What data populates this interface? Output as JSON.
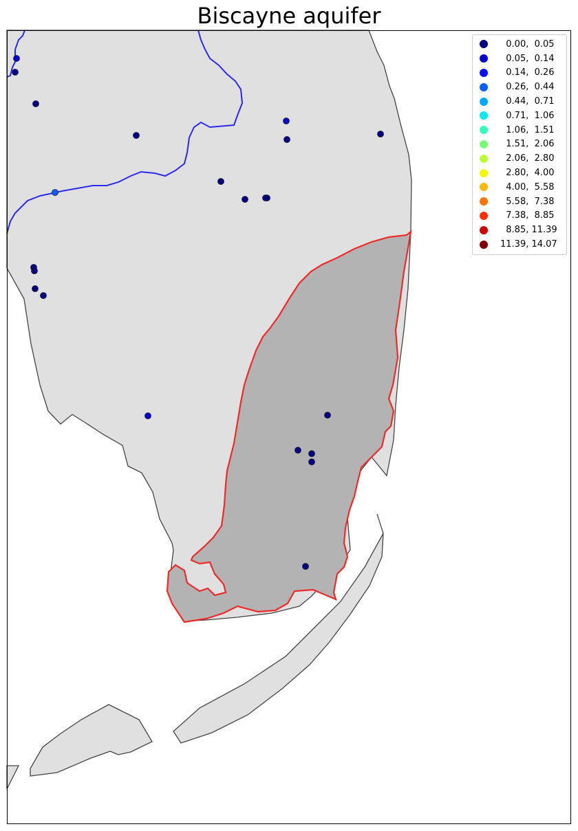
{
  "title": "Biscayne aquifer",
  "map": {
    "land_color": "#e0e0e0",
    "aquifer_color": "#b3b3b3",
    "aquifer_outline_color": "#ee2a2a",
    "river_color": "#2a2ae8",
    "coast_color": "#444444"
  },
  "legend": {
    "items": [
      {
        "label": "  0.00,  0.05",
        "color": "#00007f"
      },
      {
        "label": "  0.05,  0.14",
        "color": "#0000cd"
      },
      {
        "label": "  0.14,  0.26",
        "color": "#0010ff"
      },
      {
        "label": "  0.26,  0.44",
        "color": "#0060ff"
      },
      {
        "label": "  0.44,  0.71",
        "color": "#00a8ff"
      },
      {
        "label": "  0.71,  1.06",
        "color": "#00e8f0"
      },
      {
        "label": "  1.06,  1.51",
        "color": "#3affbc"
      },
      {
        "label": "  1.51,  2.06",
        "color": "#7aff7a"
      },
      {
        "label": "  2.06,  2.80",
        "color": "#bcff3a"
      },
      {
        "label": "  2.80,  4.00",
        "color": "#f8f500"
      },
      {
        "label": "  4.00,  5.58",
        "color": "#ffb900"
      },
      {
        "label": "  5.58,  7.38",
        "color": "#ff7300"
      },
      {
        "label": "  7.38,  8.85",
        "color": "#ff3000"
      },
      {
        "label": "  8.85, 11.39",
        "color": "#cd0000"
      },
      {
        "label": "11.39, 14.07",
        "color": "#7f0000"
      }
    ]
  },
  "wells": [
    {
      "class": 1
    },
    {
      "class": 0
    },
    {
      "class": 0
    },
    {
      "class": 0
    },
    {
      "class": 1
    },
    {
      "class": 0
    },
    {
      "class": 0
    },
    {
      "class": 3
    },
    {
      "class": 0
    },
    {
      "class": 0
    },
    {
      "class": 0
    },
    {
      "class": 0
    },
    {
      "class": 0
    },
    {
      "class": 0
    },
    {
      "class": 0
    },
    {
      "class": 0
    },
    {
      "class": 1
    },
    {
      "class": 0
    },
    {
      "class": 0
    },
    {
      "class": 0
    },
    {
      "class": 0
    },
    {
      "class": 0
    }
  ]
}
